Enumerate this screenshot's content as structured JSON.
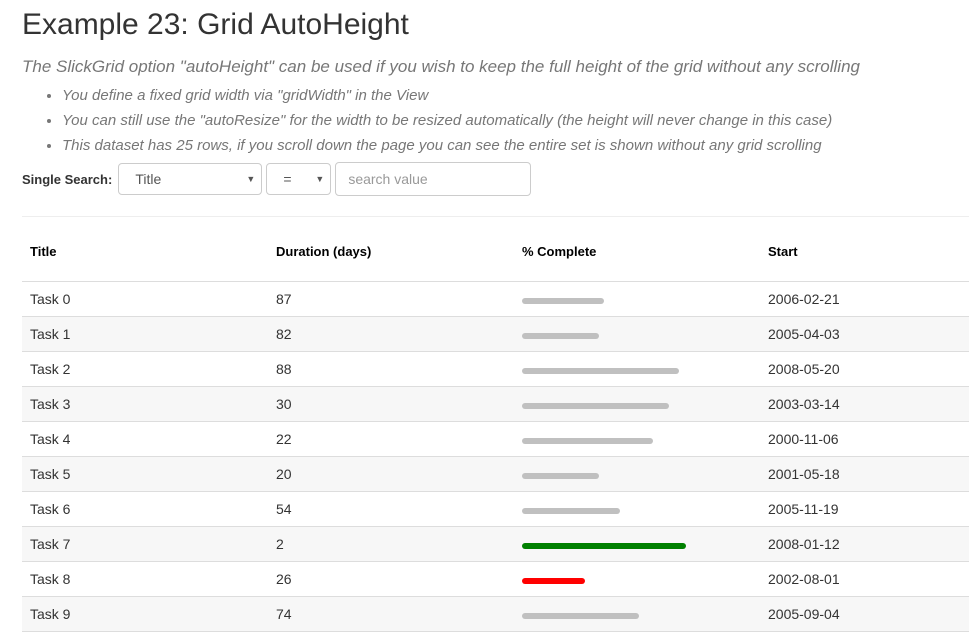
{
  "title": "Example 23: Grid AutoHeight",
  "subtitle": "The SlickGrid option \"autoHeight\" can be used if you wish to keep the full height of the grid without any scrolling",
  "bullets": [
    "You define a fixed grid width via \"gridWidth\" in the View",
    "You can still use the \"autoResize\" for the width to be resized automatically (the height will never change in this case)",
    "This dataset has 25 rows, if you scroll down the page you can see the entire set is shown without any grid scrolling"
  ],
  "search": {
    "label": "Single Search:",
    "column": "Title",
    "operator": "=",
    "placeholder": "search value"
  },
  "columns": [
    "Title",
    "Duration (days)",
    "% Complete",
    "Start"
  ],
  "colors": {
    "low": "#ff0000",
    "mid": "#c0c0c0",
    "high": "#008000"
  },
  "rows": [
    {
      "title": "Task 0",
      "duration": "87",
      "percent": 35,
      "start": "2006-02-21"
    },
    {
      "title": "Task 1",
      "duration": "82",
      "percent": 33,
      "start": "2005-04-03"
    },
    {
      "title": "Task 2",
      "duration": "88",
      "percent": 67,
      "start": "2008-05-20"
    },
    {
      "title": "Task 3",
      "duration": "30",
      "percent": 63,
      "start": "2003-03-14"
    },
    {
      "title": "Task 4",
      "duration": "22",
      "percent": 56,
      "start": "2000-11-06"
    },
    {
      "title": "Task 5",
      "duration": "20",
      "percent": 33,
      "start": "2001-05-18"
    },
    {
      "title": "Task 6",
      "duration": "54",
      "percent": 42,
      "start": "2005-11-19"
    },
    {
      "title": "Task 7",
      "duration": "2",
      "percent": 70,
      "start": "2008-01-12"
    },
    {
      "title": "Task 8",
      "duration": "26",
      "percent": 27,
      "start": "2002-08-01"
    },
    {
      "title": "Task 9",
      "duration": "74",
      "percent": 50,
      "start": "2005-09-04"
    }
  ]
}
